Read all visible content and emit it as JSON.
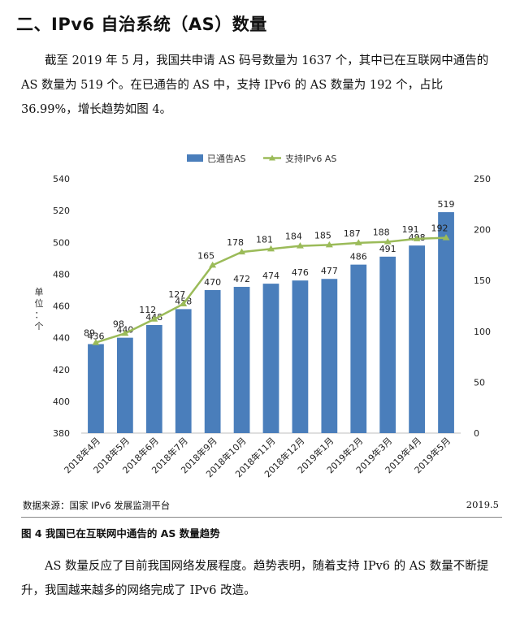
{
  "heading": "二、IPv6 自治系统（AS）数量",
  "paragraph1": "截至 2019 年 5 月，我国共申请 AS 码号数量为 1637 个，其中已在互联网中通告的 AS 数量为 519 个。在已通告的 AS 中，支持 IPv6 的 AS 数量为 192 个，占比 36.99%，增长趋势如图 4。",
  "chart_data": {
    "type": "bar+line",
    "categories": [
      "2018年4月",
      "2018年5月",
      "2018年6月",
      "2018年7月",
      "2018年9月",
      "2018年10月",
      "2018年11月",
      "2018年12月",
      "2019年1月",
      "2019年2月",
      "2019年3月",
      "2019年4月",
      "2019年5月"
    ],
    "series": [
      {
        "name": "已通告AS",
        "type": "bar",
        "axis": "left",
        "values": [
          436,
          440,
          448,
          458,
          470,
          472,
          474,
          476,
          477,
          486,
          491,
          498,
          519
        ],
        "color": "#4a7ebb"
      },
      {
        "name": "支持IPv6 AS",
        "type": "line",
        "axis": "right",
        "values": [
          89,
          98,
          112,
          127,
          165,
          178,
          181,
          184,
          185,
          187,
          188,
          191,
          192
        ],
        "color": "#9bbb59"
      }
    ],
    "y_left": {
      "min": 380,
      "max": 540,
      "ticks": [
        380,
        400,
        420,
        440,
        460,
        480,
        500,
        520,
        540
      ]
    },
    "y_right": {
      "min": 0,
      "max": 250,
      "ticks": [
        0,
        50,
        100,
        150,
        200,
        250
      ]
    },
    "ylabel": "单位：个",
    "legend_position": "top"
  },
  "source": "数据来源：国家 IPv6 发展监测平台",
  "source_date": "2019.5",
  "caption": "图 4  我国已在互联网中通告的 AS 数量趋势",
  "paragraph2": "AS 数量反应了目前我国网络发展程度。趋势表明，随着支持 IPv6 的 AS 数量不断提升，我国越来越多的网络完成了 IPv6 改造。"
}
